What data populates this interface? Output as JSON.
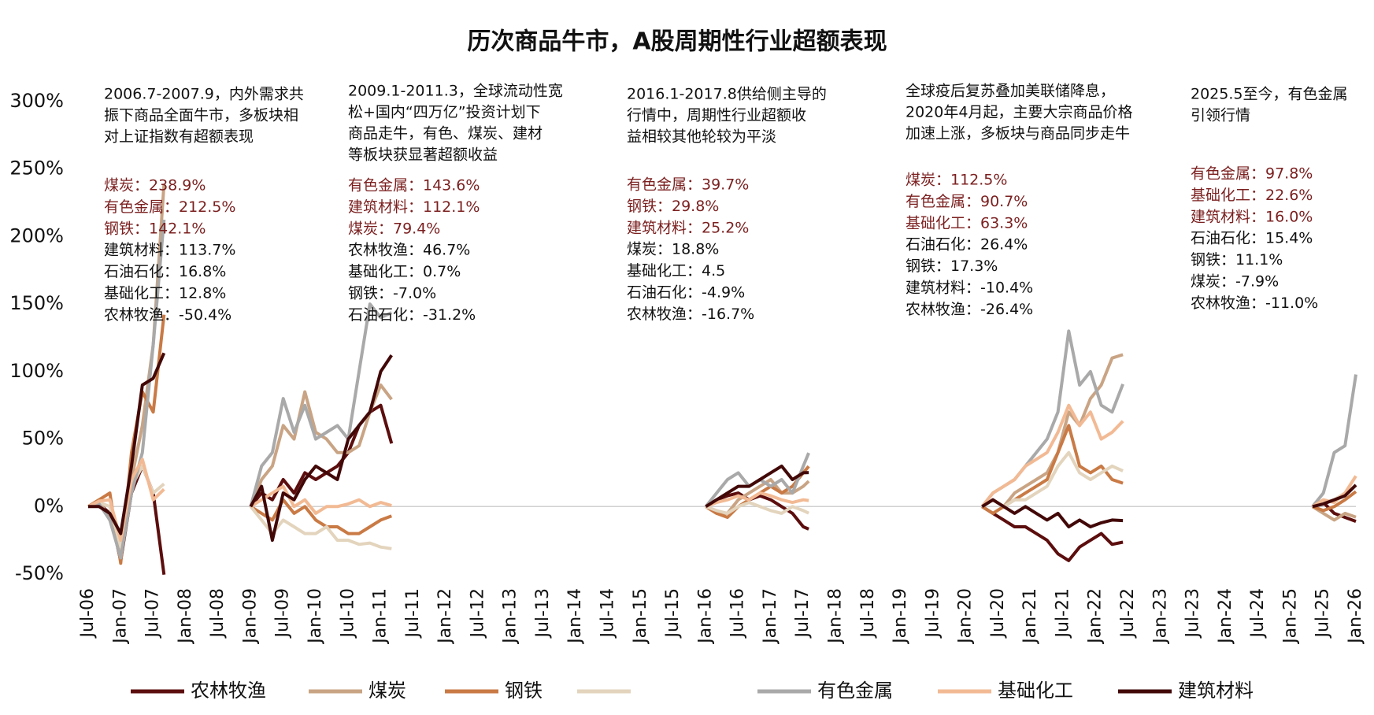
{
  "chart_data": {
    "type": "line",
    "title": "历次商品牛市，A股周期性行业超额表现",
    "x": [
      "2006-07",
      "2006-09",
      "2006-11",
      "2007-01",
      "2007-03",
      "2007-05",
      "2007-07",
      "2007-09",
      "2008-01",
      "2009-01",
      "2009-03",
      "2009-05",
      "2009-07",
      "2009-09",
      "2009-11",
      "2010-01",
      "2010-03",
      "2010-05",
      "2010-07",
      "2010-09",
      "2010-11",
      "2011-01",
      "2011-03",
      "2012-01",
      "2016-01",
      "2016-03",
      "2016-05",
      "2016-07",
      "2016-09",
      "2016-11",
      "2017-01",
      "2017-03",
      "2017-05",
      "2017-07",
      "2017-08",
      "2018-01",
      "2020-04",
      "2020-06",
      "2020-08",
      "2020-10",
      "2020-12",
      "2021-02",
      "2021-04",
      "2021-06",
      "2021-08",
      "2021-10",
      "2021-12",
      "2022-02",
      "2022-04",
      "2022-06",
      "2024-01",
      "2025-05",
      "2025-07",
      "2025-09",
      "2025-11",
      "2026-01"
    ],
    "series": [
      {
        "name": "农林牧渔",
        "color": "#5c0d0d",
        "values": [
          0,
          2,
          -5,
          -40,
          10,
          30,
          10,
          -50.4,
          null,
          0,
          10,
          5,
          20,
          10,
          25,
          20,
          25,
          30,
          40,
          60,
          70,
          75,
          46.7,
          null,
          0,
          5,
          8,
          10,
          5,
          8,
          5,
          0,
          -5,
          -15,
          -16.7,
          null,
          0,
          -5,
          -10,
          -15,
          -15,
          -20,
          -25,
          -35,
          -40,
          -30,
          -25,
          -20,
          -28,
          -26.4,
          null,
          0,
          3,
          -5,
          -8,
          -11.0
        ]
      },
      {
        "name": "煤炭",
        "color": "#c9a484",
        "values": [
          0,
          5,
          -10,
          -30,
          20,
          60,
          120,
          238.9,
          null,
          0,
          20,
          30,
          60,
          50,
          85,
          55,
          50,
          40,
          40,
          45,
          70,
          90,
          79.4,
          null,
          0,
          -5,
          -5,
          5,
          10,
          15,
          20,
          10,
          10,
          15,
          18.8,
          null,
          0,
          5,
          0,
          10,
          15,
          20,
          25,
          40,
          70,
          60,
          80,
          90,
          110,
          112.5,
          null,
          0,
          -5,
          -10,
          -5,
          -7.9
        ]
      },
      {
        "name": "钢铁",
        "color": "#c97a45",
        "values": [
          0,
          5,
          10,
          -42,
          40,
          85,
          70,
          142.1,
          null,
          0,
          -5,
          -10,
          5,
          -5,
          0,
          -10,
          -15,
          -15,
          -20,
          -20,
          -15,
          -10,
          -7.0,
          null,
          0,
          -5,
          -8,
          0,
          5,
          10,
          15,
          10,
          15,
          25,
          29.8,
          null,
          0,
          -5,
          0,
          5,
          10,
          15,
          20,
          40,
          60,
          30,
          25,
          30,
          20,
          17.3,
          null,
          0,
          -3,
          0,
          5,
          11.1
        ]
      },
      {
        "name": null,
        "color": "#e3d4bd",
        "values": [
          0,
          3,
          0,
          -30,
          15,
          30,
          10,
          16.8,
          null,
          0,
          -10,
          -20,
          -10,
          -15,
          -20,
          -20,
          -15,
          -25,
          -25,
          -28,
          -27,
          -30,
          -31.2,
          null,
          0,
          -3,
          -5,
          0,
          3,
          0,
          -3,
          -5,
          0,
          -3,
          -4.9,
          null,
          0,
          5,
          0,
          5,
          5,
          10,
          15,
          30,
          40,
          25,
          20,
          25,
          30,
          26.4,
          null,
          0,
          3,
          5,
          10,
          15.4
        ]
      },
      {
        "name": "有色金属",
        "color": "#a9a9a9",
        "values": [
          0,
          2,
          -10,
          -38,
          10,
          40,
          120,
          212.5,
          null,
          0,
          30,
          40,
          80,
          55,
          75,
          50,
          55,
          60,
          50,
          100,
          150,
          140,
          143.6,
          null,
          0,
          10,
          20,
          25,
          15,
          20,
          15,
          20,
          10,
          30,
          39.7,
          null,
          0,
          10,
          15,
          20,
          30,
          40,
          50,
          70,
          130,
          90,
          100,
          75,
          70,
          90.7,
          null,
          0,
          10,
          40,
          45,
          97.8
        ]
      },
      {
        "name": "基础化工",
        "color": "#f2ba94",
        "values": [
          0,
          4,
          5,
          -25,
          20,
          35,
          5,
          12.8,
          null,
          0,
          5,
          10,
          15,
          0,
          5,
          -5,
          0,
          0,
          2,
          5,
          0,
          3,
          0.7,
          null,
          0,
          3,
          5,
          8,
          5,
          10,
          8,
          5,
          3,
          5,
          4.5,
          null,
          0,
          10,
          15,
          20,
          30,
          35,
          40,
          55,
          75,
          60,
          70,
          50,
          55,
          63.3,
          null,
          0,
          5,
          3,
          10,
          22.6
        ]
      },
      {
        "name": "建筑材料",
        "color": "#420808",
        "values": [
          0,
          0,
          -5,
          -20,
          30,
          90,
          95,
          113.7,
          null,
          0,
          15,
          -25,
          10,
          5,
          20,
          30,
          25,
          20,
          50,
          60,
          70,
          100,
          112.1,
          null,
          0,
          5,
          10,
          15,
          15,
          20,
          25,
          30,
          20,
          25,
          25.2,
          null,
          0,
          5,
          0,
          -5,
          0,
          -5,
          -10,
          -5,
          -15,
          -10,
          -15,
          -12,
          -10,
          -10.4,
          null,
          0,
          2,
          5,
          8,
          16.0
        ]
      }
    ],
    "xlim": [
      "2006-07",
      "2026-01"
    ],
    "xticks": [
      {
        "value": "2006-07",
        "label": "Jul-06"
      },
      {
        "value": "2007-01",
        "label": "Jan-07"
      },
      {
        "value": "2007-07",
        "label": "Jul-07"
      },
      {
        "value": "2008-01",
        "label": "Jan-08"
      },
      {
        "value": "2008-07",
        "label": "Jul-08"
      },
      {
        "value": "2009-01",
        "label": "Jan-09"
      },
      {
        "value": "2009-07",
        "label": "Jul-09"
      },
      {
        "value": "2010-01",
        "label": "Jan-10"
      },
      {
        "value": "2010-07",
        "label": "Jul-10"
      },
      {
        "value": "2011-01",
        "label": "Jan-11"
      },
      {
        "value": "2011-07",
        "label": "Jul-11"
      },
      {
        "value": "2012-01",
        "label": "Jan-12"
      },
      {
        "value": "2012-07",
        "label": "Jul-12"
      },
      {
        "value": "2013-01",
        "label": "Jan-13"
      },
      {
        "value": "2013-07",
        "label": "Jul-13"
      },
      {
        "value": "2014-01",
        "label": "Jan-14"
      },
      {
        "value": "2014-07",
        "label": "Jul-14"
      },
      {
        "value": "2015-01",
        "label": "Jan-15"
      },
      {
        "value": "2015-07",
        "label": "Jul-15"
      },
      {
        "value": "2016-01",
        "label": "Jan-16"
      },
      {
        "value": "2016-07",
        "label": "Jul-16"
      },
      {
        "value": "2017-01",
        "label": "Jan-17"
      },
      {
        "value": "2017-07",
        "label": "Jul-17"
      },
      {
        "value": "2018-01",
        "label": "Jan-18"
      },
      {
        "value": "2018-07",
        "label": "Jul-18"
      },
      {
        "value": "2019-01",
        "label": "Jan-19"
      },
      {
        "value": "2019-07",
        "label": "Jul-19"
      },
      {
        "value": "2020-01",
        "label": "Jan-20"
      },
      {
        "value": "2020-07",
        "label": "Jul-20"
      },
      {
        "value": "2021-01",
        "label": "Jan-21"
      },
      {
        "value": "2021-07",
        "label": "Jul-21"
      },
      {
        "value": "2022-01",
        "label": "Jan-22"
      },
      {
        "value": "2022-07",
        "label": "Jul-22"
      },
      {
        "value": "2023-01",
        "label": "Jan-23"
      },
      {
        "value": "2023-07",
        "label": "Jul-23"
      },
      {
        "value": "2024-01",
        "label": "Jan-24"
      },
      {
        "value": "2024-07",
        "label": "Jul-24"
      },
      {
        "value": "2025-01",
        "label": "Jan-25"
      },
      {
        "value": "2025-07",
        "label": "Jul-25"
      },
      {
        "value": "2026-01",
        "label": "Jan-26"
      }
    ],
    "ylim": [
      -50,
      300
    ],
    "yticks": [
      {
        "value": -50,
        "label": "-50%"
      },
      {
        "value": 0,
        "label": "0%"
      },
      {
        "value": 50,
        "label": "50%"
      },
      {
        "value": 100,
        "label": "100%"
      },
      {
        "value": 150,
        "label": "150%"
      },
      {
        "value": 200,
        "label": "200%"
      },
      {
        "value": 250,
        "label": "250%"
      },
      {
        "value": 300,
        "label": "300%"
      }
    ],
    "grid": false,
    "legend": "bottom",
    "annotations": [
      {
        "lines": [
          "2006.7-2007.9，内外需求共",
          "振下商品全面牛市，多板块相",
          "对上证指数有超额表现"
        ],
        "items": [
          {
            "label": "煤炭：238.9%",
            "color": "#7b1f1f"
          },
          {
            "label": "有色金属：212.5%",
            "color": "#7b1f1f"
          },
          {
            "label": "钢铁：142.1%",
            "color": "#7b1f1f"
          },
          {
            "label": "建筑材料：113.7%",
            "color": "#111111"
          },
          {
            "label": "石油石化：16.8%",
            "color": "#111111"
          },
          {
            "label": "基础化工：12.8%",
            "color": "#111111"
          },
          {
            "label": "农林牧渔：-50.4%",
            "color": "#111111"
          }
        ]
      },
      {
        "lines": [
          "2009.1-2011.3，全球流动性宽",
          "松+国内“四万亿”投资计划下",
          "商品走牛，有色、煤炭、建材",
          "等板块获显著超额收益"
        ],
        "items": [
          {
            "label": "有色金属：143.6%",
            "color": "#7b1f1f"
          },
          {
            "label": "建筑材料：112.1%",
            "color": "#7b1f1f"
          },
          {
            "label": "煤炭：79.4%",
            "color": "#7b1f1f"
          },
          {
            "label": "农林牧渔：46.7%",
            "color": "#111111"
          },
          {
            "label": "基础化工：0.7%",
            "color": "#111111"
          },
          {
            "label": "钢铁：-7.0%",
            "color": "#111111"
          },
          {
            "label": "石油石化：-31.2%",
            "color": "#111111"
          }
        ]
      },
      {
        "lines": [
          "2016.1-2017.8供给侧主导的",
          "行情中，周期性行业超额收",
          "益相较其他轮较为平淡"
        ],
        "items": [
          {
            "label": "有色金属：39.7%",
            "color": "#7b1f1f"
          },
          {
            "label": "钢铁：29.8%",
            "color": "#7b1f1f"
          },
          {
            "label": "建筑材料：25.2%",
            "color": "#7b1f1f"
          },
          {
            "label": "煤炭：18.8%",
            "color": "#111111"
          },
          {
            "label": "基础化工：4.5",
            "color": "#111111"
          },
          {
            "label": "石油石化：-4.9%",
            "color": "#111111"
          },
          {
            "label": "农林牧渔：-16.7%",
            "color": "#111111"
          }
        ]
      },
      {
        "lines": [
          "全球疫后复苏叠加美联储降息，",
          "2020年4月起，主要大宗商品价格",
          "加速上涨，多板块与商品同步走牛"
        ],
        "items": [
          {
            "label": "煤炭：112.5%",
            "color": "#7b1f1f"
          },
          {
            "label": "有色金属：90.7%",
            "color": "#7b1f1f"
          },
          {
            "label": "基础化工：63.3%",
            "color": "#7b1f1f"
          },
          {
            "label": "石油石化：26.4%",
            "color": "#111111"
          },
          {
            "label": "钢铁：17.3%",
            "color": "#111111"
          },
          {
            "label": "建筑材料：-10.4%",
            "color": "#111111"
          },
          {
            "label": "农林牧渔：-26.4%",
            "color": "#111111"
          }
        ]
      },
      {
        "lines": [
          "2025.5至今，有色金属",
          "引领行情"
        ],
        "items": [
          {
            "label": "有色金属：97.8%",
            "color": "#7b1f1f"
          },
          {
            "label": "基础化工：22.6%",
            "color": "#7b1f1f"
          },
          {
            "label": "建筑材料：16.0%",
            "color": "#7b1f1f"
          },
          {
            "label": "石油石化：15.4%",
            "color": "#111111"
          },
          {
            "label": "钢铁：11.1%",
            "color": "#111111"
          },
          {
            "label": "煤炭：-7.9%",
            "color": "#111111"
          },
          {
            "label": "农林牧渔：-11.0%",
            "color": "#111111"
          }
        ]
      }
    ]
  }
}
